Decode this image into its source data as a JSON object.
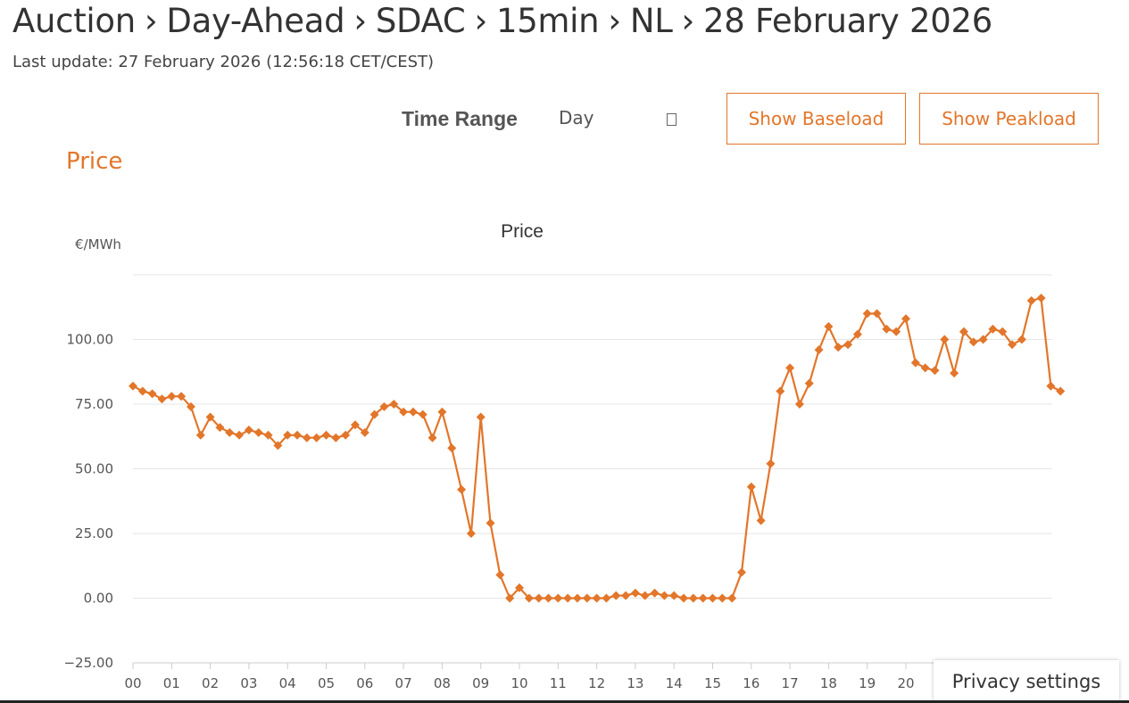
{
  "breadcrumb": [
    "Auction",
    "Day-Ahead",
    "SDAC",
    "15min",
    "NL",
    "28 February 2026"
  ],
  "last_update": "Last update: 27 February 2026 (12:56:18 CET/CEST)",
  "controls": {
    "time_range_label": "Time Range",
    "time_range_value": "Day",
    "calendar_icon": "calendar-icon",
    "show_baseload": "Show Baseload",
    "show_peakload": "Show Peakload"
  },
  "section_title": "Price",
  "privacy_settings": "Privacy settings",
  "colors": {
    "accent": "#e2762a",
    "grid": "#e6e6e6",
    "text": "#333333"
  },
  "chart_data": {
    "type": "line",
    "title": "Price",
    "ylabel": "€/MWh",
    "xlabel": "",
    "x_ticks": [
      "00",
      "01",
      "02",
      "03",
      "04",
      "05",
      "06",
      "07",
      "08",
      "09",
      "10",
      "11",
      "12",
      "13",
      "14",
      "15",
      "16",
      "17",
      "18",
      "19",
      "20"
    ],
    "y_ticks": [
      "−25.00",
      "0.00",
      "25.00",
      "50.00",
      "75.00",
      "100.00"
    ],
    "ylim": [
      -25,
      125
    ],
    "grid": true,
    "legend": "none",
    "series": [
      {
        "values": [
          82,
          80,
          79,
          77,
          78,
          78,
          74,
          63,
          70,
          66,
          64,
          63,
          65,
          64,
          63,
          59,
          63,
          63,
          62,
          62,
          63,
          62,
          63,
          67,
          64,
          71,
          74,
          75,
          72,
          72,
          71,
          62,
          72,
          58,
          42,
          25,
          70,
          29,
          9,
          0,
          4,
          0,
          0,
          0,
          0,
          0,
          0,
          0,
          0,
          0,
          1,
          1,
          2,
          1,
          2,
          1,
          1,
          0,
          0,
          0,
          0,
          0,
          0,
          10,
          43,
          30,
          52,
          80,
          89,
          75,
          83,
          96,
          105,
          97,
          98,
          102,
          110,
          110,
          104,
          103,
          108,
          91,
          89,
          88,
          100,
          87,
          103,
          99,
          100,
          104,
          103,
          98,
          100,
          115,
          116,
          82,
          80
        ]
      }
    ]
  }
}
